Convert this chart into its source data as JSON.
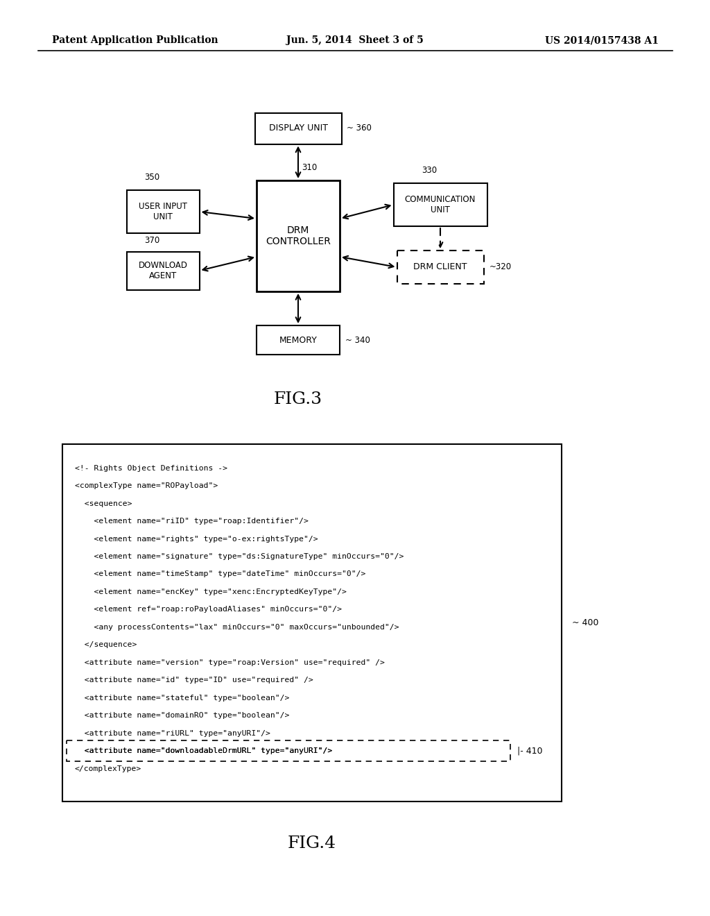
{
  "bg_color": "#ffffff",
  "header_left": "Patent Application Publication",
  "header_center": "Jun. 5, 2014  Sheet 3 of 5",
  "header_right": "US 2014/0157438 A1",
  "fig3_label": "FIG.3",
  "fig4_label": "FIG.4",
  "xml_lines": [
    "<!- Rights Object Definitions ->",
    "<complexType name=\"ROPayload\">",
    "  <sequence>",
    "    <element name=\"riID\" type=\"roap:Identifier\"/>",
    "    <element name=\"rights\" type=\"o-ex:rightsType\"/>",
    "    <element name=\"signature\" type=\"ds:SignatureType\" minOccurs=\"0\"/>",
    "    <element name=\"timeStamp\" type=\"dateTime\" minOccurs=\"0\"/>",
    "    <element name=\"encKey\" type=\"xenc:EncryptedKeyType\"/>",
    "    <element ref=\"roap:roPayloadAliases\" minOccurs=\"0\"/>",
    "    <any processContents=\"lax\" minOccurs=\"0\" maxOccurs=\"unbounded\"/>",
    "  </sequence>",
    "  <attribute name=\"version\" type=\"roap:Version\" use=\"required\" />",
    "  <attribute name=\"id\" type=\"ID\" use=\"required\" />",
    "  <attribute name=\"stateful\" type=\"boolean\"/>",
    "  <attribute name=\"domainRO\" type=\"boolean\"/>",
    "  <attribute name=\"riURL\" type=\"anyURI\"/>",
    "  <attribute name=\"downloadableDrmURL\" type=\"anyURI\"/>",
    "</complexType>"
  ],
  "xml_highlight_idx": 16,
  "xml_box_ref": "~ 400",
  "xml_highlight_ref": "~ 410"
}
